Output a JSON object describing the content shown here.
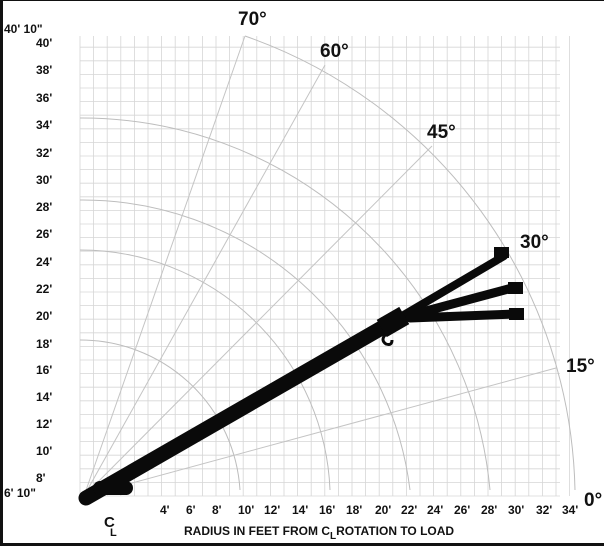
{
  "y_tick_labels": [
    "6' 10\"",
    "8'",
    "10'",
    "12'",
    "14'",
    "16'",
    "18'",
    "20'",
    "22'",
    "24'",
    "26'",
    "28'",
    "30'",
    "32'",
    "34'",
    "36'",
    "38'",
    "40'",
    "40' 10\""
  ],
  "x_tick_labels": [
    "4'",
    "6'",
    "8'",
    "10'",
    "12'",
    "14'",
    "16'",
    "18'",
    "20'",
    "22'",
    "24'",
    "26'",
    "28'",
    "30'",
    "32'",
    "34'"
  ],
  "angle_labels": [
    "0°",
    "15°",
    "30°",
    "45°",
    "60°",
    "70°"
  ],
  "axis_title_main": "RADIUS IN FEET FROM C",
  "axis_title_sub": "L",
  "axis_title_tail": "ROTATION TO LOAD",
  "centerline_symbol": "C",
  "centerline_sub": "L",
  "colors": {
    "boom": "#0a0a0a",
    "grid": "#cfcfcf",
    "arc": "#bdbdbd",
    "text": "#111111"
  }
}
